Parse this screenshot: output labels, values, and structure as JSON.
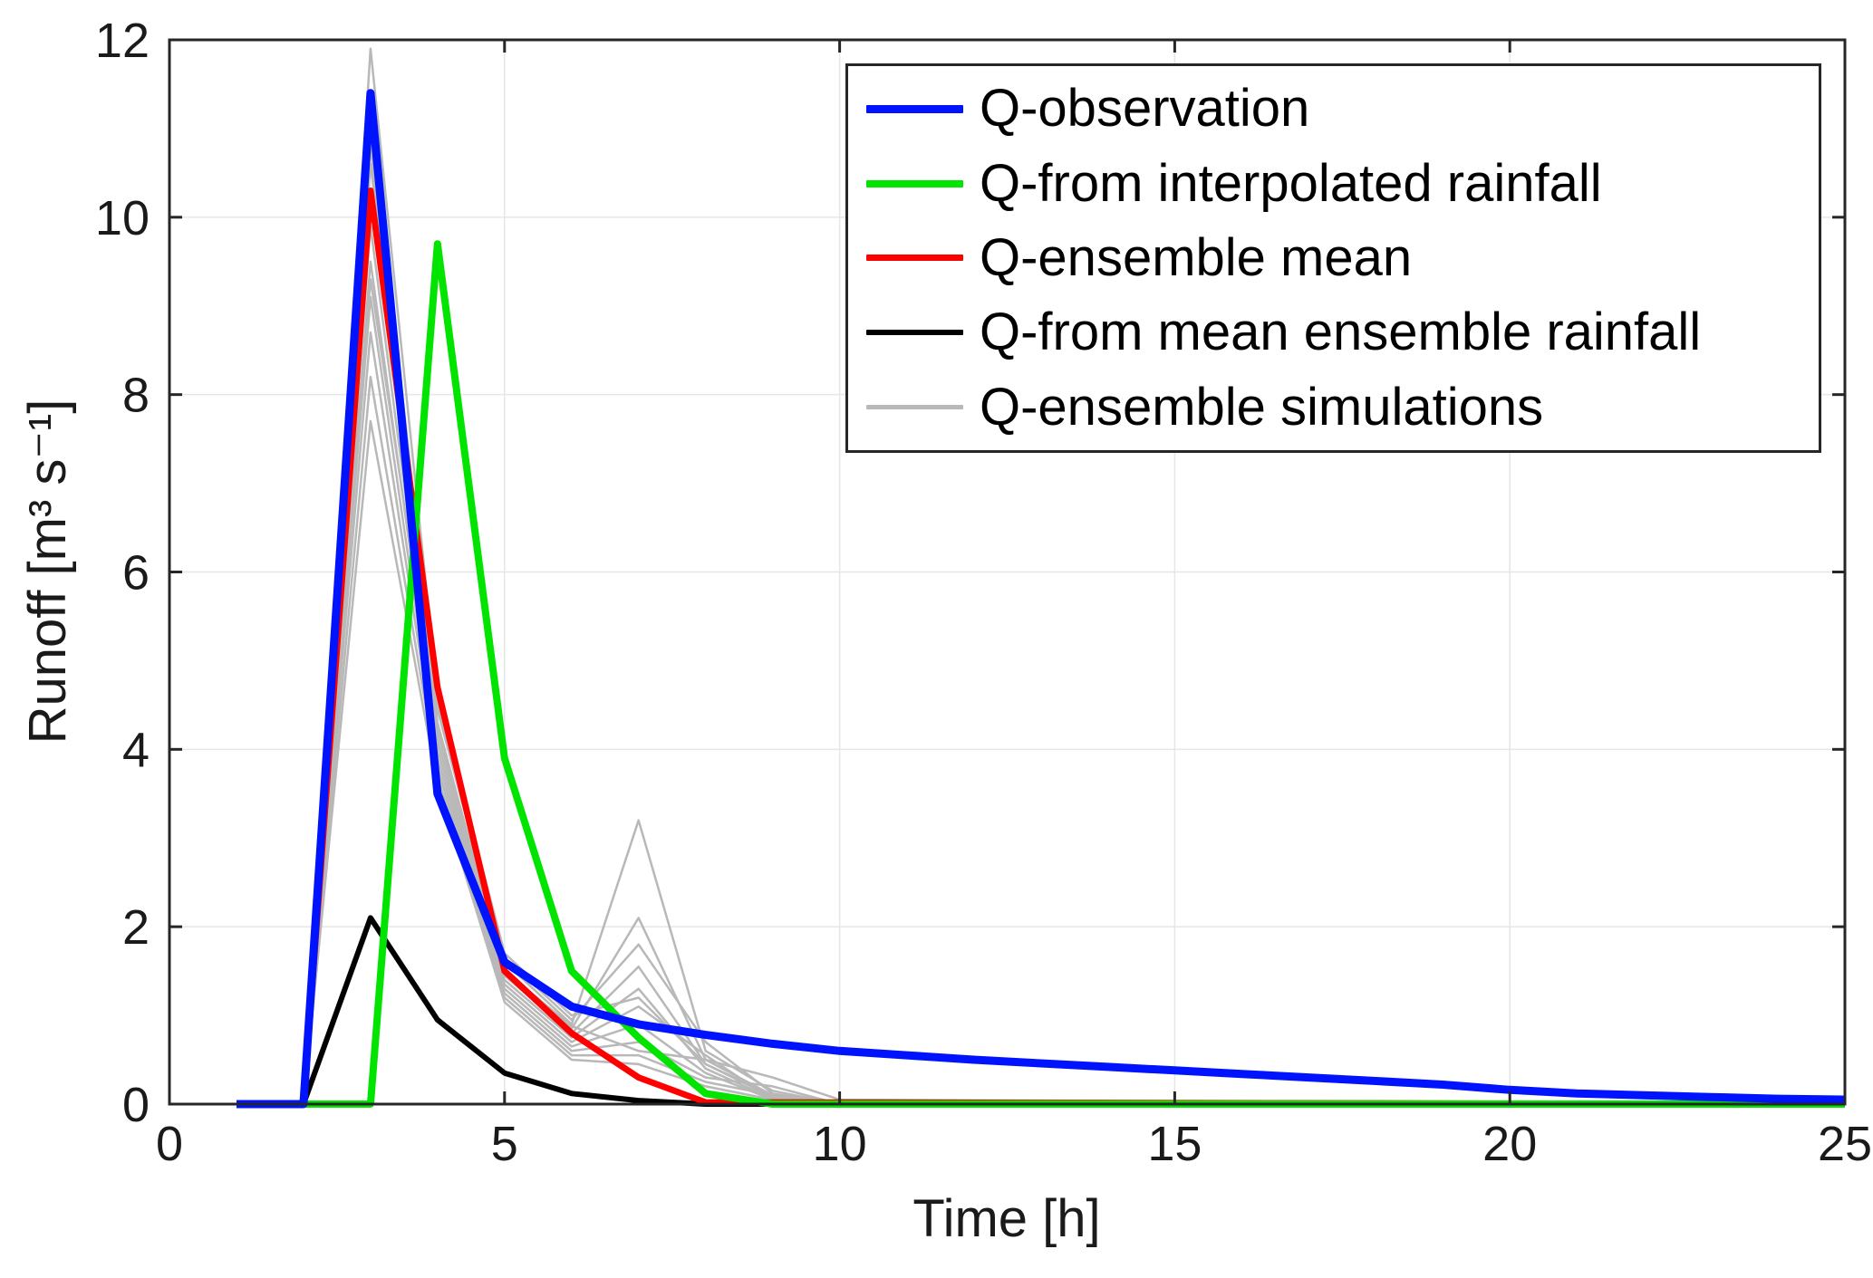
{
  "chart_data": {
    "type": "line",
    "title": "",
    "xlabel": "Time [h]",
    "ylabel": "Runoff [m³ s⁻¹]",
    "xlim": [
      0,
      25
    ],
    "ylim": [
      0,
      12
    ],
    "xticks": [
      0,
      5,
      10,
      15,
      20,
      25
    ],
    "yticks": [
      0,
      2,
      4,
      6,
      8,
      10,
      12
    ],
    "grid": true,
    "legend_position": "top-right",
    "colors": {
      "grid": "#e6e6e6",
      "axis": "#262626",
      "tick_text": "#1a1a1a",
      "background": "#ffffff"
    },
    "legend": [
      {
        "label": "Q-observation",
        "color": "#0013ff",
        "sample_thickness": 9
      },
      {
        "label": "Q-from interpolated rainfall",
        "color": "#00e400",
        "sample_thickness": 8
      },
      {
        "label": "Q-ensemble mean",
        "color": "#ff0000",
        "sample_thickness": 7
      },
      {
        "label": "Q-from mean ensemble rainfall",
        "color": "#000000",
        "sample_thickness": 6
      },
      {
        "label": "Q-ensemble simulations",
        "color": "#b8b8b8",
        "sample_thickness": 5
      }
    ],
    "series": [
      {
        "name": "Q-ensemble simulations",
        "color": "#b8b8b8",
        "width": 2.5,
        "members": [
          {
            "x": [
              1,
              2,
              3,
              4,
              5,
              6,
              7,
              8,
              9,
              10,
              25
            ],
            "y": [
              0,
              0,
              11.9,
              4.6,
              1.7,
              1.0,
              1.2,
              0.45,
              0.1,
              0,
              0
            ]
          },
          {
            "x": [
              1,
              2,
              3,
              4,
              5,
              6,
              7,
              8,
              9,
              10,
              25
            ],
            "y": [
              0,
              0,
              11.2,
              4.45,
              1.6,
              0.9,
              3.2,
              0.6,
              0.15,
              0,
              0
            ]
          },
          {
            "x": [
              1,
              2,
              3,
              4,
              5,
              6,
              7,
              8,
              9,
              10,
              25
            ],
            "y": [
              0,
              0,
              10.8,
              4.3,
              1.5,
              0.85,
              2.1,
              0.5,
              0.1,
              0,
              0
            ]
          },
          {
            "x": [
              1,
              2,
              3,
              4,
              5,
              6,
              7,
              8,
              9,
              10,
              25
            ],
            "y": [
              0,
              0,
              10.3,
              4.2,
              1.45,
              0.8,
              1.55,
              0.45,
              0.08,
              0,
              0
            ]
          },
          {
            "x": [
              1,
              2,
              3,
              4,
              5,
              6,
              7,
              8,
              9,
              10,
              25
            ],
            "y": [
              0,
              0,
              9.9,
              4.1,
              1.4,
              0.75,
              1.3,
              0.4,
              0.06,
              0,
              0
            ]
          },
          {
            "x": [
              1,
              2,
              3,
              4,
              5,
              6,
              7,
              8,
              9,
              10,
              25
            ],
            "y": [
              0,
              0,
              9.5,
              4.0,
              1.35,
              0.7,
              1.1,
              0.55,
              0.05,
              0,
              0
            ]
          },
          {
            "x": [
              1,
              2,
              3,
              4,
              5,
              6,
              7,
              8,
              9,
              10,
              25
            ],
            "y": [
              0,
              0,
              9.1,
              3.9,
              1.3,
              0.65,
              0.9,
              0.35,
              0.05,
              0,
              0
            ]
          },
          {
            "x": [
              1,
              2,
              3,
              4,
              5,
              6,
              7,
              8,
              9,
              10,
              25
            ],
            "y": [
              0,
              0,
              8.7,
              3.8,
              1.25,
              0.6,
              0.7,
              0.3,
              0.2,
              0,
              0
            ]
          },
          {
            "x": [
              1,
              2,
              3,
              4,
              5,
              6,
              7,
              8,
              9,
              10,
              25
            ],
            "y": [
              0,
              0,
              8.2,
              3.7,
              1.2,
              0.55,
              0.55,
              0.25,
              0.1,
              0,
              0
            ]
          },
          {
            "x": [
              1,
              2,
              3,
              4,
              5,
              6,
              7,
              8,
              9,
              10,
              25
            ],
            "y": [
              0,
              0,
              7.7,
              3.6,
              1.15,
              0.5,
              0.45,
              0.2,
              0.05,
              0,
              0
            ]
          },
          {
            "x": [
              1,
              2,
              3,
              4,
              5,
              6,
              7,
              8,
              9,
              10,
              25
            ],
            "y": [
              0,
              0,
              10.6,
              4.5,
              1.65,
              0.95,
              1.8,
              0.7,
              0.12,
              0,
              0
            ]
          },
          {
            "x": [
              1,
              2,
              3,
              4,
              5,
              6,
              7,
              8,
              9,
              10,
              25
            ],
            "y": [
              0,
              0,
              9.3,
              4.25,
              1.5,
              0.88,
              0.6,
              0.5,
              0.3,
              0.05,
              0
            ]
          }
        ]
      },
      {
        "name": "Q-from mean ensemble rainfall",
        "color": "#000000",
        "width": 6,
        "x": [
          1,
          2,
          3,
          4,
          5,
          6,
          7,
          8,
          25
        ],
        "y": [
          0,
          0,
          2.1,
          0.95,
          0.35,
          0.12,
          0.04,
          0,
          0
        ]
      },
      {
        "name": "Q-ensemble mean",
        "color": "#ff0000",
        "width": 7,
        "x": [
          1,
          2,
          3,
          4,
          5,
          6,
          7,
          8,
          25
        ],
        "y": [
          0,
          0,
          10.3,
          4.7,
          1.5,
          0.8,
          0.3,
          0.02,
          0
        ]
      },
      {
        "name": "Q-from interpolated rainfall",
        "color": "#00e400",
        "width": 8,
        "x": [
          1,
          2,
          3,
          4,
          5,
          6,
          7,
          8,
          9,
          25
        ],
        "y": [
          0,
          0,
          0,
          9.7,
          3.9,
          1.5,
          0.75,
          0.12,
          0,
          0
        ]
      },
      {
        "name": "Q-observation",
        "color": "#0013ff",
        "width": 9,
        "x": [
          1,
          2,
          3,
          4,
          5,
          6,
          7,
          8,
          9,
          10,
          11,
          12,
          13,
          14,
          15,
          16,
          17,
          18,
          19,
          20,
          21,
          22,
          23,
          24,
          25
        ],
        "y": [
          0,
          0,
          11.4,
          3.5,
          1.6,
          1.1,
          0.9,
          0.78,
          0.68,
          0.6,
          0.55,
          0.5,
          0.46,
          0.42,
          0.38,
          0.34,
          0.3,
          0.26,
          0.22,
          0.16,
          0.12,
          0.1,
          0.08,
          0.06,
          0.05
        ]
      }
    ]
  }
}
